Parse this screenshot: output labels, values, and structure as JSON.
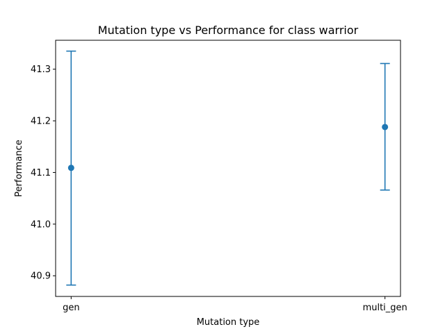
{
  "chart_data": {
    "type": "scatter",
    "subtype": "errorbar",
    "title": "Mutation type vs Performance for class warrior",
    "xlabel": "Mutation type",
    "ylabel": "Performance",
    "categories": [
      "gen",
      "multi_gen"
    ],
    "series": [
      {
        "values": [
          41.109,
          41.188
        ],
        "error_low": [
          40.882,
          41.066
        ],
        "error_high": [
          41.335,
          41.311
        ],
        "color": "#1f77b4"
      }
    ],
    "ylim": [
      40.86,
      41.356
    ],
    "yticks": [
      40.9,
      41.0,
      41.1,
      41.2,
      41.3
    ],
    "ytick_labels": [
      "40.9",
      "41.0",
      "41.1",
      "41.2",
      "41.3"
    ],
    "grid": false,
    "legend": "none"
  }
}
